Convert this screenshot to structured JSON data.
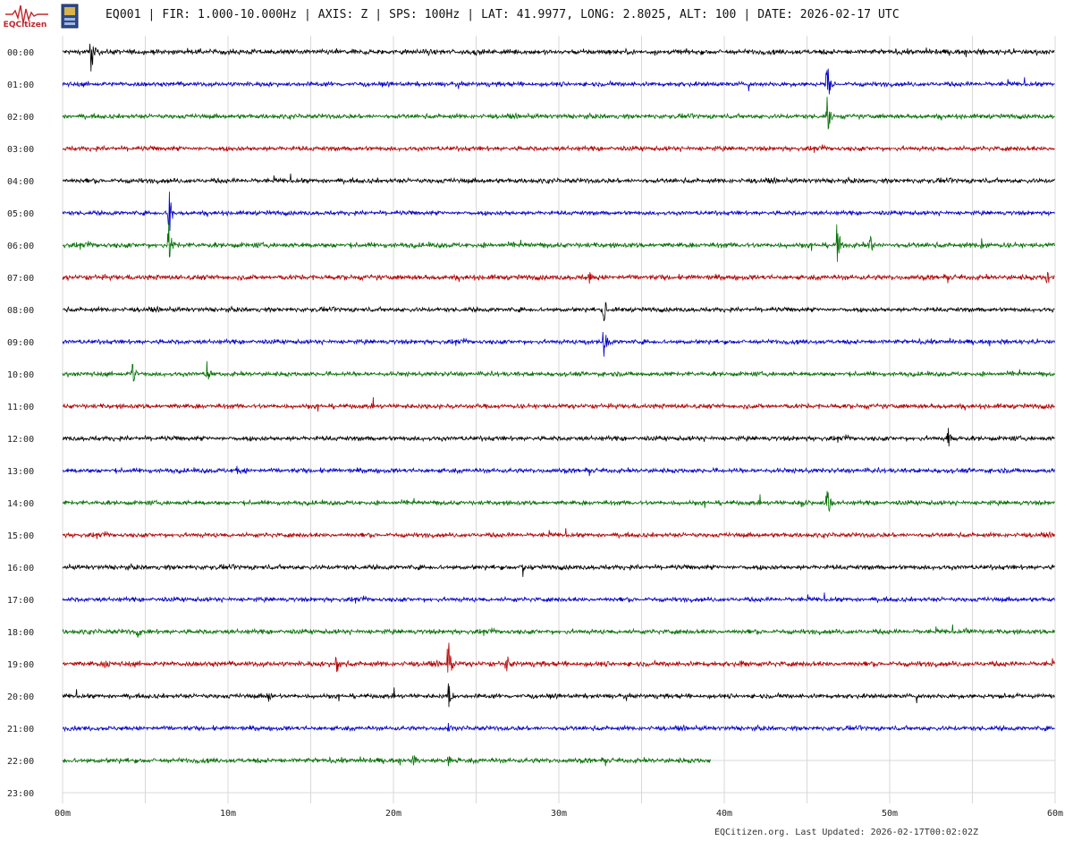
{
  "header": {
    "logo_label": "EQCitizen",
    "title": "EQ001 | FIR: 1.000-10.000Hz | AXIS: Z | SPS: 100Hz | LAT: 41.9977, LONG: 2.8025, ALT: 100 | DATE: 2026-02-17 UTC"
  },
  "footer": {
    "text": "EQCitizen.org. Last Updated: 2026-02-17T00:02:02Z"
  },
  "colors": {
    "trace_cycle": [
      "#000000",
      "#0000c8",
      "#007000",
      "#b40000"
    ],
    "grid": "#d8d8d8",
    "logo": "#c0282d"
  },
  "chart_data": {
    "type": "line",
    "title": "",
    "xlabel": "",
    "ylabel": "",
    "x_ticks": [
      "00m",
      "10m",
      "20m",
      "30m",
      "40m",
      "50m",
      "60m"
    ],
    "xlim": [
      0,
      60
    ],
    "x_grid_step_minutes": 5,
    "grid": true,
    "row_labels": [
      "00:00",
      "01:00",
      "02:00",
      "03:00",
      "04:00",
      "05:00",
      "06:00",
      "07:00",
      "08:00",
      "09:00",
      "10:00",
      "11:00",
      "12:00",
      "13:00",
      "14:00",
      "15:00",
      "16:00",
      "17:00",
      "18:00",
      "19:00",
      "20:00",
      "21:00",
      "22:00",
      "23:00"
    ],
    "series": [
      {
        "hour": "00:00",
        "end_minute": 60,
        "noise": 2.6,
        "spikes": [
          {
            "minute": 1.7,
            "amp": 38
          }
        ]
      },
      {
        "hour": "01:00",
        "end_minute": 60,
        "noise": 2.3,
        "spikes": [
          {
            "minute": 46.2,
            "amp": 36
          }
        ]
      },
      {
        "hour": "02:00",
        "end_minute": 60,
        "noise": 2.3,
        "spikes": [
          {
            "minute": 46.2,
            "amp": 32
          }
        ]
      },
      {
        "hour": "03:00",
        "end_minute": 60,
        "noise": 2.4,
        "spikes": []
      },
      {
        "hour": "04:00",
        "end_minute": 60,
        "noise": 2.4,
        "spikes": []
      },
      {
        "hour": "05:00",
        "end_minute": 60,
        "noise": 2.2,
        "spikes": [
          {
            "minute": 6.4,
            "amp": 40
          }
        ]
      },
      {
        "hour": "06:00",
        "end_minute": 60,
        "noise": 2.6,
        "spikes": [
          {
            "minute": 6.4,
            "amp": 36
          },
          {
            "minute": 46.8,
            "amp": 32
          },
          {
            "minute": 48.8,
            "amp": 14
          },
          {
            "minute": 55.5,
            "amp": 14
          }
        ]
      },
      {
        "hour": "07:00",
        "end_minute": 60,
        "noise": 2.6,
        "spikes": [
          {
            "minute": 31.8,
            "amp": 12
          },
          {
            "minute": 59.5,
            "amp": 12
          }
        ]
      },
      {
        "hour": "08:00",
        "end_minute": 60,
        "noise": 2.3,
        "spikes": [
          {
            "minute": 32.7,
            "amp": 18
          }
        ]
      },
      {
        "hour": "09:00",
        "end_minute": 60,
        "noise": 2.3,
        "spikes": [
          {
            "minute": 32.7,
            "amp": 26
          },
          {
            "minute": 31.5,
            "amp": 10
          }
        ]
      },
      {
        "hour": "10:00",
        "end_minute": 60,
        "noise": 2.3,
        "spikes": [
          {
            "minute": 4.2,
            "amp": 22
          },
          {
            "minute": 8.7,
            "amp": 16
          }
        ]
      },
      {
        "hour": "11:00",
        "end_minute": 60,
        "noise": 2.4,
        "spikes": []
      },
      {
        "hour": "12:00",
        "end_minute": 60,
        "noise": 2.4,
        "spikes": [
          {
            "minute": 53.5,
            "amp": 20
          }
        ]
      },
      {
        "hour": "13:00",
        "end_minute": 60,
        "noise": 2.4,
        "spikes": [
          {
            "minute": 10.5,
            "amp": 6
          }
        ]
      },
      {
        "hour": "14:00",
        "end_minute": 60,
        "noise": 2.3,
        "spikes": [
          {
            "minute": 46.2,
            "amp": 28
          },
          {
            "minute": 44.7,
            "amp": 12
          }
        ]
      },
      {
        "hour": "15:00",
        "end_minute": 60,
        "noise": 2.3,
        "spikes": []
      },
      {
        "hour": "16:00",
        "end_minute": 60,
        "noise": 2.4,
        "spikes": [
          {
            "minute": 27.8,
            "amp": 14
          }
        ]
      },
      {
        "hour": "17:00",
        "end_minute": 60,
        "noise": 2.3,
        "spikes": []
      },
      {
        "hour": "18:00",
        "end_minute": 60,
        "noise": 2.4,
        "spikes": [
          {
            "minute": 4.5,
            "amp": 10
          },
          {
            "minute": 54.6,
            "amp": 9
          }
        ]
      },
      {
        "hour": "19:00",
        "end_minute": 60,
        "noise": 2.6,
        "spikes": [
          {
            "minute": 23.3,
            "amp": 40
          },
          {
            "minute": 16.5,
            "amp": 18
          },
          {
            "minute": 26.8,
            "amp": 14
          },
          {
            "minute": 2.5,
            "amp": 12
          },
          {
            "minute": 41.0,
            "amp": 8
          }
        ]
      },
      {
        "hour": "20:00",
        "end_minute": 60,
        "noise": 2.3,
        "spikes": [
          {
            "minute": 23.3,
            "amp": 30
          },
          {
            "minute": 12.4,
            "amp": 10
          }
        ]
      },
      {
        "hour": "21:00",
        "end_minute": 60,
        "noise": 2.3,
        "spikes": [
          {
            "minute": 23.3,
            "amp": 8
          }
        ]
      },
      {
        "hour": "22:00",
        "end_minute": 39.2,
        "noise": 2.5,
        "spikes": [
          {
            "minute": 21.2,
            "amp": 14
          },
          {
            "minute": 23.3,
            "amp": 8
          }
        ]
      },
      {
        "hour": "23:00",
        "end_minute": 0,
        "noise": 0,
        "spikes": []
      }
    ]
  }
}
